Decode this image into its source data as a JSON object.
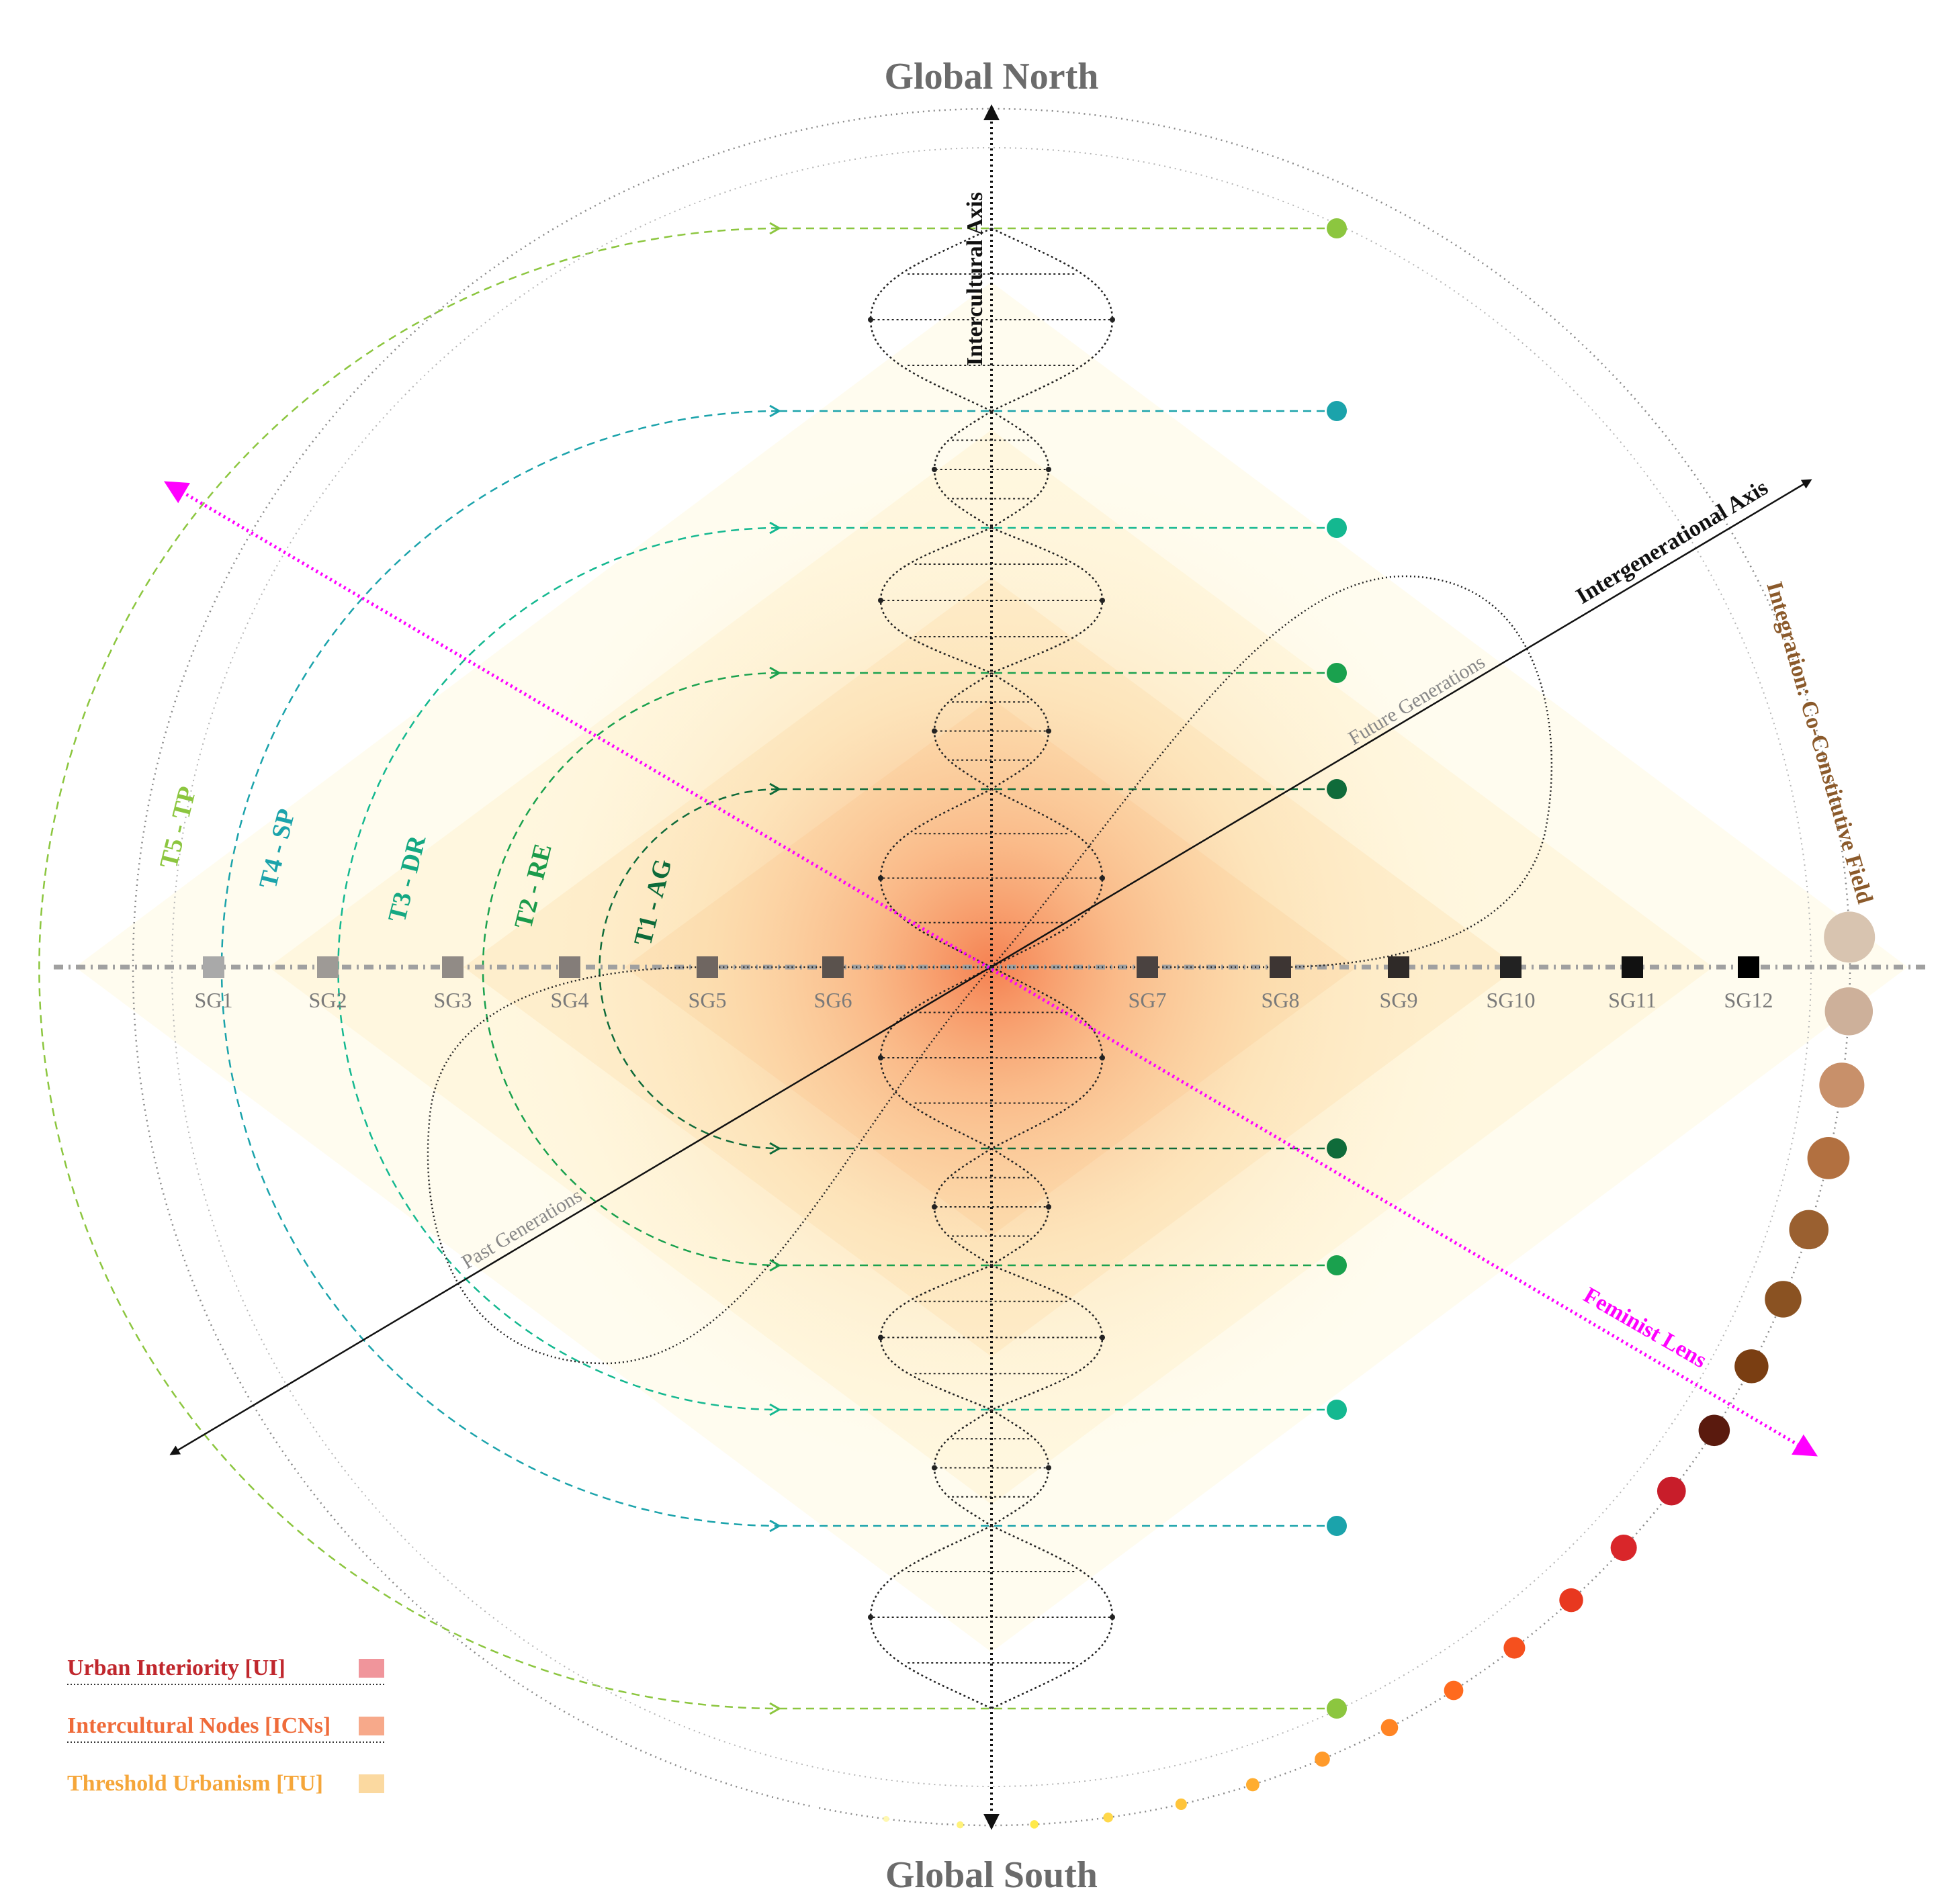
{
  "cardinals": {
    "north": "Global North",
    "south": "Global South"
  },
  "axes": {
    "intercultural": "Intercultural Axis",
    "intergenerational": "Intergenerational Axis",
    "feminist": "Feminist Lens",
    "integration": "Integration: Co-Constitutive Field"
  },
  "generations": {
    "future": "Future Generations",
    "past": "Past Generations"
  },
  "tiers": [
    {
      "label": "T1 - AG",
      "color": "#0d6b3a"
    },
    {
      "label": "T2 - RE",
      "color": "#1a9a4a"
    },
    {
      "label": "T3 - DR",
      "color": "#14a882"
    },
    {
      "label": "T4 - SP",
      "color": "#1ba3ab"
    },
    {
      "label": "T5 - TP",
      "color": "#8cc63f"
    }
  ],
  "sg_labels": [
    "SG1",
    "SG2",
    "SG3",
    "SG4",
    "SG5",
    "SG6",
    "SG7",
    "SG8",
    "SG9",
    "SG10",
    "SG11",
    "SG12"
  ],
  "sg_colors": [
    "#a9a9a9",
    "#9e9a96",
    "#918b86",
    "#847d79",
    "#6f6661",
    "#5a524d",
    "#4a4240",
    "#3d3533",
    "#2f2a28",
    "#222",
    "#111",
    "#000"
  ],
  "node_colors": [
    "#8cc63f",
    "#1ba3ab",
    "#14b890",
    "#1aa14e",
    "#0f6b3a",
    "#0f6b3a",
    "#1aa14e",
    "#14b890",
    "#1ba3ab",
    "#8cc63f"
  ],
  "gradient_dot_colors": [
    "#ffffff",
    "#fff8b0",
    "#fff27a",
    "#ffe94a",
    "#ffd84a",
    "#ffc43a",
    "#ffad30",
    "#ff9a2a",
    "#ff8424",
    "#ff6a1e",
    "#f5501e",
    "#e8381f",
    "#d9262a",
    "#c81d2a",
    "#5a1a0e",
    "#7a3e12",
    "#8a5222",
    "#9a6030",
    "#b27040",
    "#c8906a",
    "#cdb09a",
    "#d8c4b0"
  ],
  "legend": [
    {
      "label": "Urban Interiority [UI]",
      "color": "#c0272d",
      "swatch": "#f0959b"
    },
    {
      "label": "Intercultural Nodes [ICNs]",
      "color": "#ef6b3a",
      "swatch": "#f7a98a"
    },
    {
      "label": "Threshold Urbanism [TU]",
      "color": "#f5a63a",
      "swatch": "#fbd9a0"
    }
  ],
  "colors": {
    "feminist": "#ff00ff",
    "integration": "#8b5a2b"
  }
}
